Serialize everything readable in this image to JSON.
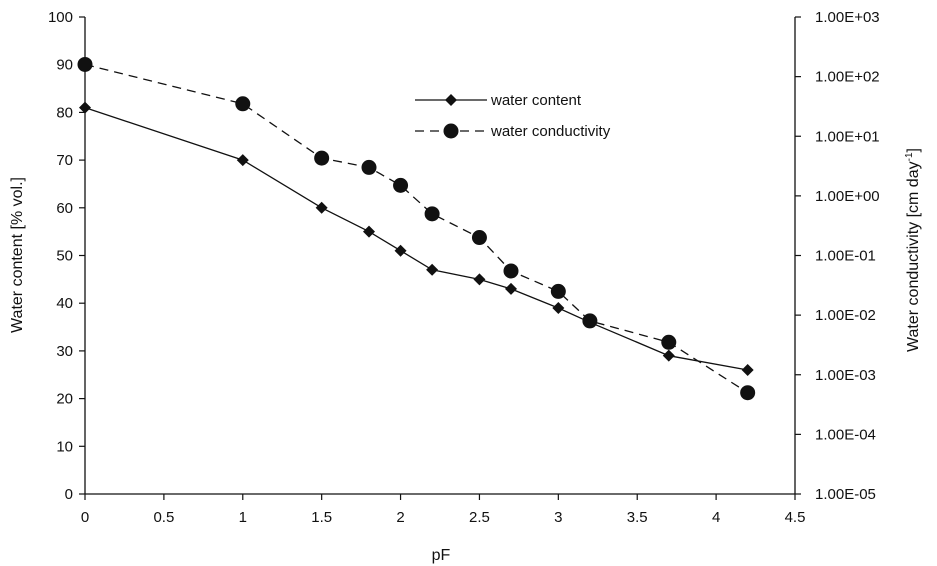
{
  "chart_data": {
    "type": "line",
    "xlabel": "pF",
    "ylabel_left": "Water content [% vol.]",
    "ylabel_right": "Water conductivity [cm day",
    "ylabel_right_sup": "-1",
    "ylabel_right_close": "]",
    "xlim": [
      0,
      4.5
    ],
    "ylim_left": [
      0,
      100
    ],
    "ylim_right": [
      1e-05,
      1000
    ],
    "right_scale": "log",
    "x_ticks": [
      "0",
      "0.5",
      "1",
      "1.5",
      "2",
      "2.5",
      "3",
      "3.5",
      "4",
      "4.5"
    ],
    "y_left_ticks": [
      "0",
      "10",
      "20",
      "30",
      "40",
      "50",
      "60",
      "70",
      "80",
      "90",
      "100"
    ],
    "y_right_ticks": [
      "1.00E-05",
      "1.00E-04",
      "1.00E-03",
      "1.00E-02",
      "1.00E-01",
      "1.00E+00",
      "1.00E+01",
      "1.00E+02",
      "1.00E+03"
    ],
    "grid": false,
    "legend_position": "top-center",
    "series": [
      {
        "name": "water content",
        "axis": "left",
        "marker": "diamond",
        "line": "solid",
        "x": [
          0,
          1,
          1.5,
          1.8,
          2,
          2.2,
          2.5,
          2.7,
          3,
          3.2,
          3.7,
          4.2
        ],
        "y": [
          81,
          70,
          60,
          55,
          51,
          47,
          45,
          43,
          39,
          36,
          29,
          26
        ]
      },
      {
        "name": "water conductivity",
        "axis": "right",
        "marker": "circle",
        "line": "dashed",
        "x": [
          0,
          1,
          1.5,
          1.8,
          2,
          2.2,
          2.5,
          2.7,
          3,
          3.2,
          3.7,
          4.2
        ],
        "y": [
          160,
          35,
          4.3,
          3.0,
          1.5,
          0.5,
          0.2,
          0.055,
          0.025,
          0.008,
          0.0035,
          0.0005
        ]
      }
    ]
  }
}
